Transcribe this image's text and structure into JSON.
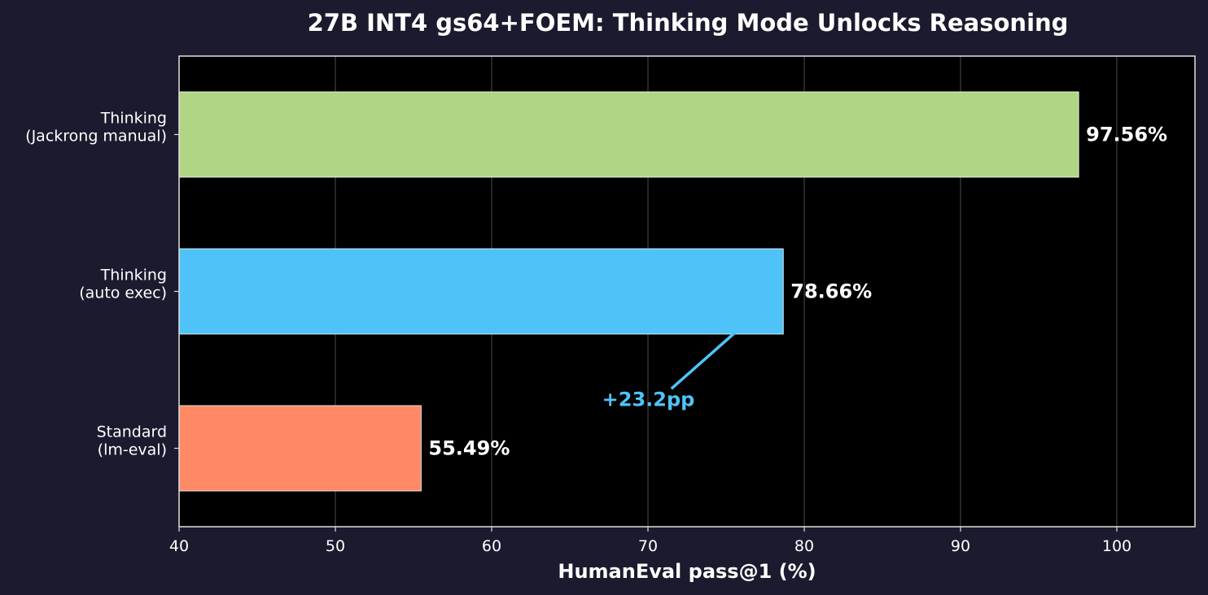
{
  "chart_data": {
    "type": "bar",
    "orientation": "horizontal",
    "title": "27B INT4 gs64+FOEM: Thinking Mode Unlocks Reasoning",
    "xlabel": "HumanEval pass@1 (%)",
    "ylabel": "",
    "xlim": [
      40,
      105
    ],
    "xticks": [
      40,
      50,
      60,
      70,
      80,
      90,
      100
    ],
    "grid": "vertical",
    "categories": [
      [
        "Thinking",
        "(Jackrong manual)"
      ],
      [
        "Thinking",
        "(auto exec)"
      ],
      [
        "Standard",
        "(lm-eval)"
      ]
    ],
    "values": [
      97.56,
      78.66,
      55.49
    ],
    "value_labels": [
      "97.56%",
      "78.66%",
      "55.49%"
    ],
    "colors": [
      "#b0d584",
      "#4fc3f7",
      "#ff8a65"
    ],
    "annotation": {
      "text": "+23.2pp",
      "color": "#4fc3f7",
      "text_x": 70.4,
      "arrow_from": [
        71.5,
        0.62
      ],
      "arrow_to": [
        75.6,
        0.26
      ]
    }
  }
}
